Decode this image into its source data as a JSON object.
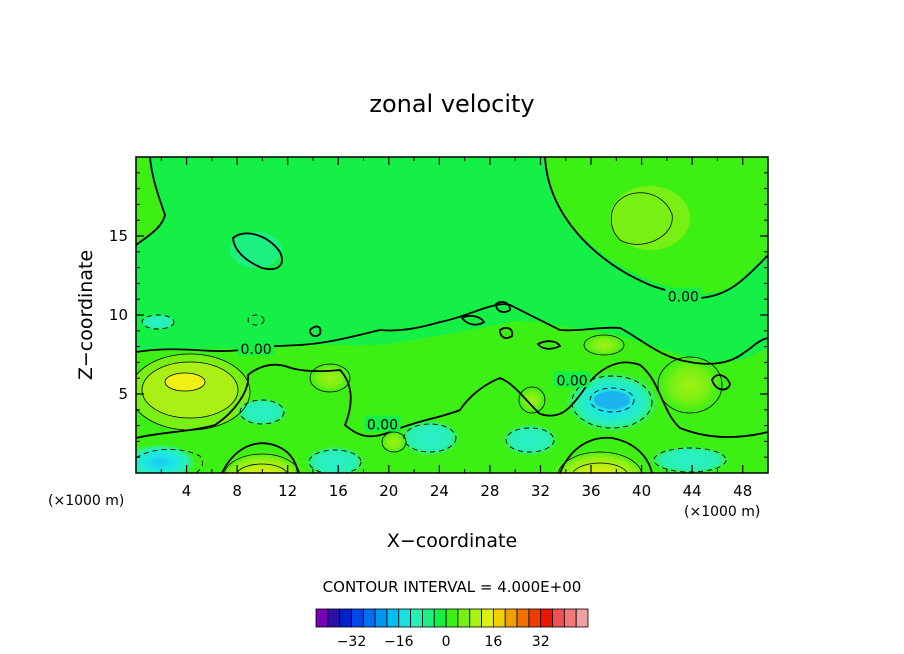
{
  "chart_data": {
    "type": "contour",
    "title": "zonal velocity",
    "xlabel": "X−coordinate",
    "ylabel": "Z−coordinate",
    "x_unit": "(×1000 m)",
    "y_unit": "(×1000 m)",
    "xlim": [
      0,
      50
    ],
    "ylim": [
      0,
      20
    ],
    "x_ticks": [
      4,
      8,
      12,
      16,
      20,
      24,
      28,
      32,
      36,
      40,
      44,
      48
    ],
    "y_ticks": [
      5,
      10,
      15
    ],
    "contour_interval_text": "CONTOUR INTERVAL = 4.000E+00",
    "contour_labels": [
      {
        "text": "0.00",
        "x": 9.5,
        "z": 7.8
      },
      {
        "text": "0.00",
        "x": 19.5,
        "z": 3.0
      },
      {
        "text": "0.00",
        "x": 34.5,
        "z": 5.8
      },
      {
        "text": "0.00",
        "x": 43.3,
        "z": 11.1
      }
    ],
    "fields": [
      {
        "x": 4,
        "z": 5.3,
        "value": 18
      },
      {
        "x": 10,
        "z": 0.3,
        "value": 20
      },
      {
        "x": 36.5,
        "z": 0.3,
        "value": 20
      },
      {
        "x": 37,
        "z": 4.6,
        "value": -14
      },
      {
        "x": 1,
        "z": 0.6,
        "value": -12
      },
      {
        "x": 15,
        "z": 0.5,
        "value": -6
      },
      {
        "x": 23,
        "z": 1.5,
        "value": -4
      },
      {
        "x": 10,
        "z": 3.8,
        "value": -6
      },
      {
        "x": 16,
        "z": 6.0,
        "value": 8
      },
      {
        "x": 19,
        "z": 2.2,
        "value": 6
      },
      {
        "x": 31,
        "z": 4.3,
        "value": 6
      },
      {
        "x": 44,
        "z": 5.3,
        "value": 8
      },
      {
        "x": 38.5,
        "z": 16.3,
        "value": 6
      },
      {
        "x": 9.5,
        "z": 14.0,
        "value": -4
      },
      {
        "x": 1,
        "z": 9.5,
        "value": -4
      }
    ],
    "colorbar": {
      "colors": [
        "#7a00b4",
        "#2d0fa8",
        "#0022c8",
        "#0048e6",
        "#0070f0",
        "#0096f0",
        "#00bef0",
        "#1ce0e0",
        "#28f0b4",
        "#1cf082",
        "#14f046",
        "#3cf014",
        "#78f014",
        "#aaf014",
        "#dcf014",
        "#f0d200",
        "#f0a000",
        "#f07000",
        "#f03c00",
        "#f01400",
        "#f05050",
        "#f07878",
        "#f0a0a0"
      ],
      "tick_labels": [
        "−32",
        "−16",
        "0",
        "16",
        "32"
      ],
      "tick_values": [
        -32,
        -16,
        0,
        16,
        32
      ]
    }
  }
}
